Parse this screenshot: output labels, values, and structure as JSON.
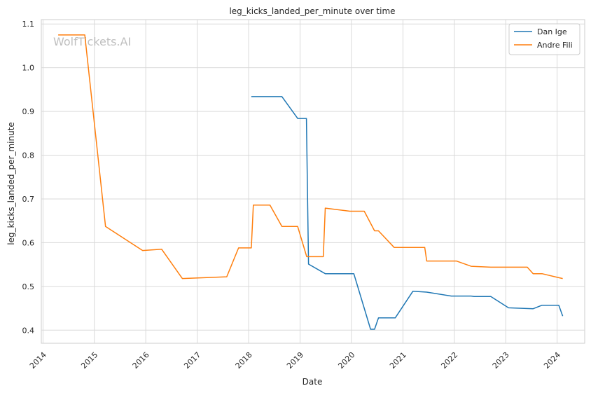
{
  "chart_data": {
    "type": "line",
    "title": "leg_kicks_landed_per_minute over time",
    "xlabel": "Date",
    "ylabel": "leg_kicks_landed_per_minute",
    "watermark": "WolfTickets.AI",
    "xlim": [
      "2013-12-20",
      "2024-07-15"
    ],
    "ylim": [
      0.37,
      1.11
    ],
    "x_ticks": [
      "2014",
      "2015",
      "2016",
      "2017",
      "2018",
      "2019",
      "2020",
      "2021",
      "2022",
      "2023",
      "2024"
    ],
    "y_ticks": [
      "0.4",
      "0.5",
      "0.6",
      "0.7",
      "0.8",
      "0.9",
      "1.0",
      "1.1"
    ],
    "grid": true,
    "legend_position": "top-right",
    "series": [
      {
        "name": "Dan Ige",
        "color": "#1f77b4",
        "points": [
          [
            "2018-01-20",
            0.934
          ],
          [
            "2018-08-25",
            0.934
          ],
          [
            "2018-12-15",
            0.884
          ],
          [
            "2019-02-15",
            0.884
          ],
          [
            "2019-03-02",
            0.551
          ],
          [
            "2019-06-29",
            0.529
          ],
          [
            "2020-01-18",
            0.529
          ],
          [
            "2020-05-16",
            0.402
          ],
          [
            "2020-06-13",
            0.402
          ],
          [
            "2020-07-11",
            0.428
          ],
          [
            "2020-11-07",
            0.428
          ],
          [
            "2021-03-13",
            0.489
          ],
          [
            "2021-06-19",
            0.487
          ],
          [
            "2021-12-11",
            0.478
          ],
          [
            "2022-04-30",
            0.478
          ],
          [
            "2022-05-21",
            0.477
          ],
          [
            "2022-09-17",
            0.477
          ],
          [
            "2023-01-21",
            0.451
          ],
          [
            "2023-07-15",
            0.449
          ],
          [
            "2023-09-16",
            0.457
          ],
          [
            "2024-01-13",
            0.457
          ],
          [
            "2024-02-10",
            0.432
          ]
        ]
      },
      {
        "name": "Andre Fili",
        "color": "#ff7f0e",
        "points": [
          [
            "2014-04-19",
            1.075
          ],
          [
            "2014-10-25",
            1.075
          ],
          [
            "2015-03-21",
            0.637
          ],
          [
            "2015-12-10",
            0.582
          ],
          [
            "2016-04-23",
            0.585
          ],
          [
            "2016-09-17",
            0.518
          ],
          [
            "2017-07-29",
            0.522
          ],
          [
            "2017-10-21",
            0.588
          ],
          [
            "2018-01-20",
            0.588
          ],
          [
            "2018-02-03",
            0.686
          ],
          [
            "2018-06-01",
            0.686
          ],
          [
            "2018-08-25",
            0.637
          ],
          [
            "2018-12-15",
            0.637
          ],
          [
            "2019-02-17",
            0.568
          ],
          [
            "2019-06-15",
            0.568
          ],
          [
            "2019-06-29",
            0.679
          ],
          [
            "2019-12-21",
            0.672
          ],
          [
            "2020-04-01",
            0.672
          ],
          [
            "2020-06-13",
            0.627
          ],
          [
            "2020-07-11",
            0.627
          ],
          [
            "2020-10-31",
            0.589
          ],
          [
            "2021-06-05",
            0.589
          ],
          [
            "2021-06-19",
            0.558
          ],
          [
            "2022-01-15",
            0.558
          ],
          [
            "2022-04-30",
            0.546
          ],
          [
            "2022-09-17",
            0.544
          ],
          [
            "2023-06-03",
            0.544
          ],
          [
            "2023-07-15",
            0.529
          ],
          [
            "2023-09-16",
            0.529
          ],
          [
            "2024-01-13",
            0.52
          ],
          [
            "2024-02-10",
            0.518
          ]
        ]
      }
    ]
  }
}
